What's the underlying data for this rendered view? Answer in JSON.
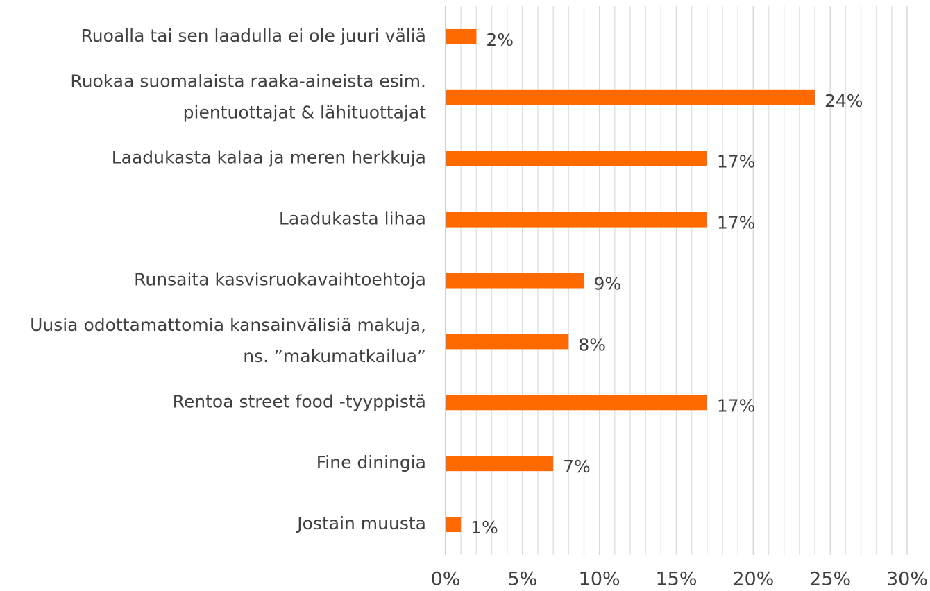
{
  "chart_data": {
    "type": "bar",
    "orientation": "horizontal",
    "categories": [
      [
        "Ruoalla tai sen laadulla ei ole juuri väliä"
      ],
      [
        "Ruokaa suomalaista raaka-aineista esim.",
        "pientuottajat & lähituottajat"
      ],
      [
        "Laadukasta kalaa ja meren herkkuja"
      ],
      [
        "Laadukasta lihaa"
      ],
      [
        "Runsaita kasvisruokavaihtoehtoja"
      ],
      [
        "Uusia odottamattomia kansainvälisiä makuja,",
        "ns. ”makumatkailua”"
      ],
      [
        "Rentoa street food -tyyppistä"
      ],
      [
        "Fine diningia"
      ],
      [
        "Jostain muusta"
      ]
    ],
    "values": [
      2,
      24,
      17,
      17,
      9,
      8,
      17,
      7,
      1
    ],
    "value_labels": [
      "2%",
      "24%",
      "17%",
      "17%",
      "9%",
      "8%",
      "17%",
      "7%",
      "1%"
    ],
    "color": "#ff6a00",
    "xlim": [
      0,
      30
    ],
    "xticks": [
      {
        "value": 0,
        "label": "0%"
      },
      {
        "value": 5,
        "label": "5%"
      },
      {
        "value": 10,
        "label": "10%"
      },
      {
        "value": 15,
        "label": "15%"
      },
      {
        "value": 20,
        "label": "20%"
      },
      {
        "value": 25,
        "label": "25%"
      },
      {
        "value": 30,
        "label": "30%"
      }
    ],
    "xminorticks": [
      1,
      2,
      3,
      4,
      6,
      7,
      8,
      9,
      11,
      12,
      13,
      14,
      16,
      17,
      18,
      19,
      21,
      22,
      23,
      24,
      26,
      27,
      28,
      29
    ],
    "grid": true
  }
}
